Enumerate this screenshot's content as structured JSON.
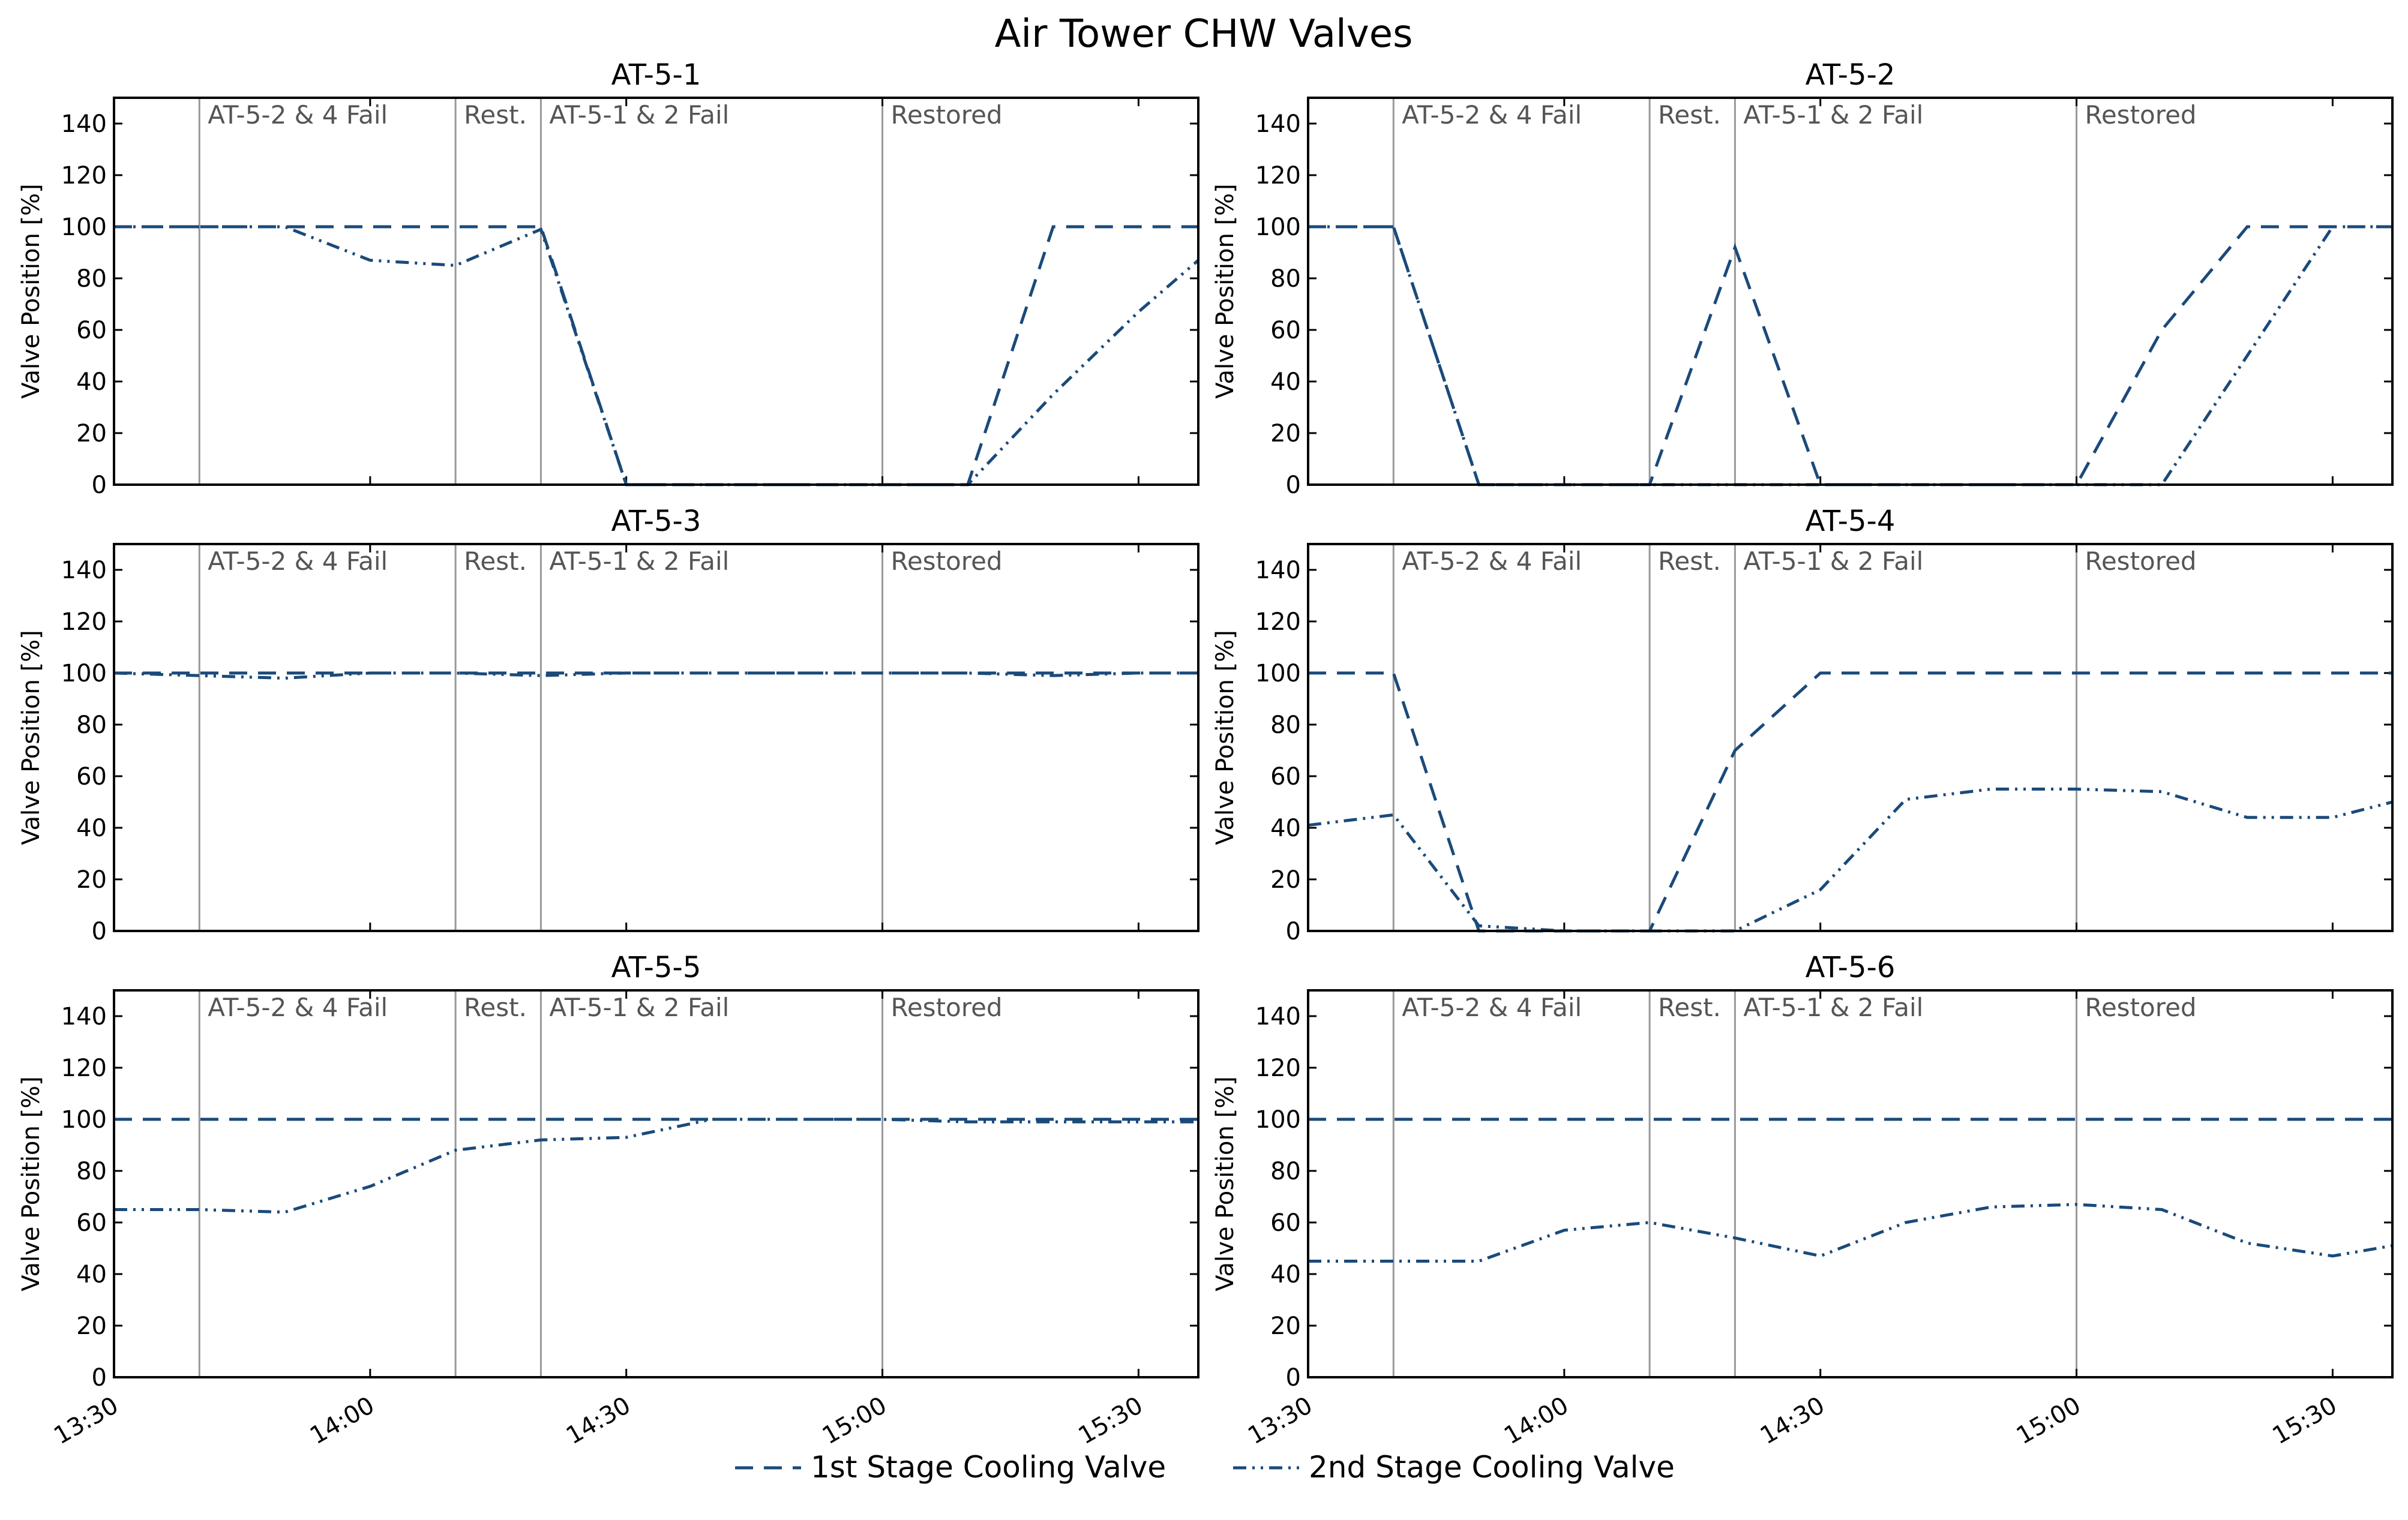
{
  "figure": {
    "title": "Air Tower CHW Valves"
  },
  "legend": {
    "placement": "bottom-center",
    "items": [
      {
        "name": "1st Stage Cooling Valve",
        "style": "dashed"
      },
      {
        "name": "2nd Stage Cooling Valve",
        "style": "dash-dot-dot"
      }
    ]
  },
  "colors": {
    "series": "#1a4a7a",
    "event_line": "#999999",
    "event_text": "#555555"
  },
  "chart_data": [
    {
      "type": "line",
      "title": "AT-5-1",
      "ylabel": "Valve Position [%]",
      "ylim": [
        0,
        150
      ],
      "xlim": [
        "13:30",
        "15:37"
      ],
      "grid": false,
      "y_ticks": [
        0,
        20,
        40,
        60,
        80,
        100,
        120,
        140
      ],
      "x_ticks": [
        "13:30",
        "14:00",
        "14:30",
        "15:00",
        "15:30"
      ],
      "x_tick_labels_shown": false,
      "events": [
        {
          "time": "13:40",
          "label": "AT-5-2 & 4 Fail"
        },
        {
          "time": "14:10",
          "label": "Rest."
        },
        {
          "time": "14:20",
          "label": "AT-5-1 & 2 Fail"
        },
        {
          "time": "15:00",
          "label": "Restored"
        }
      ],
      "x": [
        "13:30",
        "13:40",
        "13:50",
        "14:00",
        "14:10",
        "14:20",
        "14:30",
        "14:40",
        "14:50",
        "15:00",
        "15:10",
        "15:20",
        "15:30",
        "15:37"
      ],
      "series": [
        {
          "name": "1st Stage Cooling Valve",
          "values": [
            100,
            100,
            100,
            100,
            100,
            100,
            0,
            0,
            0,
            0,
            0,
            100,
            100,
            100
          ]
        },
        {
          "name": "2nd Stage Cooling Valve",
          "values": [
            100,
            100,
            100,
            87,
            85,
            99,
            0,
            0,
            0,
            0,
            0,
            35,
            67,
            87
          ]
        }
      ]
    },
    {
      "type": "line",
      "title": "AT-5-2",
      "ylabel": "Valve Position [%]",
      "ylim": [
        0,
        150
      ],
      "xlim": [
        "13:30",
        "15:37"
      ],
      "grid": false,
      "y_ticks": [
        0,
        20,
        40,
        60,
        80,
        100,
        120,
        140
      ],
      "x_ticks": [
        "13:30",
        "14:00",
        "14:30",
        "15:00",
        "15:30"
      ],
      "x_tick_labels_shown": false,
      "events": [
        {
          "time": "13:40",
          "label": "AT-5-2 & 4 Fail"
        },
        {
          "time": "14:10",
          "label": "Rest."
        },
        {
          "time": "14:20",
          "label": "AT-5-1 & 2 Fail"
        },
        {
          "time": "15:00",
          "label": "Restored"
        }
      ],
      "x": [
        "13:30",
        "13:40",
        "13:50",
        "14:00",
        "14:10",
        "14:20",
        "14:30",
        "14:40",
        "14:50",
        "15:00",
        "15:10",
        "15:20",
        "15:30",
        "15:37"
      ],
      "series": [
        {
          "name": "1st Stage Cooling Valve",
          "values": [
            100,
            100,
            0,
            0,
            0,
            92,
            0,
            0,
            0,
            0,
            60,
            100,
            100,
            100
          ]
        },
        {
          "name": "2nd Stage Cooling Valve",
          "values": [
            100,
            100,
            0,
            0,
            0,
            0,
            0,
            0,
            0,
            0,
            0,
            50,
            100,
            100
          ]
        }
      ]
    },
    {
      "type": "line",
      "title": "AT-5-3",
      "ylabel": "Valve Position [%]",
      "ylim": [
        0,
        150
      ],
      "xlim": [
        "13:30",
        "15:37"
      ],
      "grid": false,
      "y_ticks": [
        0,
        20,
        40,
        60,
        80,
        100,
        120,
        140
      ],
      "x_ticks": [
        "13:30",
        "14:00",
        "14:30",
        "15:00",
        "15:30"
      ],
      "x_tick_labels_shown": false,
      "events": [
        {
          "time": "13:40",
          "label": "AT-5-2 & 4 Fail"
        },
        {
          "time": "14:10",
          "label": "Rest."
        },
        {
          "time": "14:20",
          "label": "AT-5-1 & 2 Fail"
        },
        {
          "time": "15:00",
          "label": "Restored"
        }
      ],
      "x": [
        "13:30",
        "13:40",
        "13:50",
        "14:00",
        "14:10",
        "14:20",
        "14:30",
        "14:40",
        "14:50",
        "15:00",
        "15:10",
        "15:20",
        "15:30",
        "15:37"
      ],
      "series": [
        {
          "name": "1st Stage Cooling Valve",
          "values": [
            100,
            100,
            100,
            100,
            100,
            100,
            100,
            100,
            100,
            100,
            100,
            100,
            100,
            100
          ]
        },
        {
          "name": "2nd Stage Cooling Valve",
          "values": [
            100,
            99,
            98,
            100,
            100,
            99,
            100,
            100,
            100,
            100,
            100,
            99,
            100,
            100
          ]
        }
      ]
    },
    {
      "type": "line",
      "title": "AT-5-4",
      "ylabel": "Valve Position [%]",
      "ylim": [
        0,
        150
      ],
      "xlim": [
        "13:30",
        "15:37"
      ],
      "grid": false,
      "y_ticks": [
        0,
        20,
        40,
        60,
        80,
        100,
        120,
        140
      ],
      "x_ticks": [
        "13:30",
        "14:00",
        "14:30",
        "15:00",
        "15:30"
      ],
      "x_tick_labels_shown": false,
      "events": [
        {
          "time": "13:40",
          "label": "AT-5-2 & 4 Fail"
        },
        {
          "time": "14:10",
          "label": "Rest."
        },
        {
          "time": "14:20",
          "label": "AT-5-1 & 2 Fail"
        },
        {
          "time": "15:00",
          "label": "Restored"
        }
      ],
      "x": [
        "13:30",
        "13:40",
        "13:50",
        "14:00",
        "14:10",
        "14:20",
        "14:30",
        "14:40",
        "14:50",
        "15:00",
        "15:10",
        "15:20",
        "15:30",
        "15:37"
      ],
      "series": [
        {
          "name": "1st Stage Cooling Valve",
          "values": [
            100,
            100,
            0,
            0,
            0,
            70,
            100,
            100,
            100,
            100,
            100,
            100,
            100,
            100
          ]
        },
        {
          "name": "2nd Stage Cooling Valve",
          "values": [
            41,
            45,
            2,
            0,
            0,
            0,
            16,
            51,
            55,
            55,
            54,
            44,
            44,
            50
          ]
        }
      ]
    },
    {
      "type": "line",
      "title": "AT-5-5",
      "ylabel": "Valve Position [%]",
      "ylim": [
        0,
        150
      ],
      "xlim": [
        "13:30",
        "15:37"
      ],
      "grid": false,
      "y_ticks": [
        0,
        20,
        40,
        60,
        80,
        100,
        120,
        140
      ],
      "x_ticks": [
        "13:30",
        "14:00",
        "14:30",
        "15:00",
        "15:30"
      ],
      "x_tick_labels_shown": true,
      "events": [
        {
          "time": "13:40",
          "label": "AT-5-2 & 4 Fail"
        },
        {
          "time": "14:10",
          "label": "Rest."
        },
        {
          "time": "14:20",
          "label": "AT-5-1 & 2 Fail"
        },
        {
          "time": "15:00",
          "label": "Restored"
        }
      ],
      "x": [
        "13:30",
        "13:40",
        "13:50",
        "14:00",
        "14:10",
        "14:20",
        "14:30",
        "14:40",
        "14:50",
        "15:00",
        "15:10",
        "15:20",
        "15:30",
        "15:37"
      ],
      "series": [
        {
          "name": "1st Stage Cooling Valve",
          "values": [
            100,
            100,
            100,
            100,
            100,
            100,
            100,
            100,
            100,
            100,
            100,
            100,
            100,
            100
          ]
        },
        {
          "name": "2nd Stage Cooling Valve",
          "values": [
            65,
            65,
            64,
            74,
            88,
            92,
            93,
            100,
            100,
            100,
            99,
            99,
            99,
            99
          ]
        }
      ]
    },
    {
      "type": "line",
      "title": "AT-5-6",
      "ylabel": "Valve Position [%]",
      "ylim": [
        0,
        150
      ],
      "xlim": [
        "13:30",
        "15:37"
      ],
      "grid": false,
      "y_ticks": [
        0,
        20,
        40,
        60,
        80,
        100,
        120,
        140
      ],
      "x_ticks": [
        "13:30",
        "14:00",
        "14:30",
        "15:00",
        "15:30"
      ],
      "x_tick_labels_shown": true,
      "events": [
        {
          "time": "13:40",
          "label": "AT-5-2 & 4 Fail"
        },
        {
          "time": "14:10",
          "label": "Rest."
        },
        {
          "time": "14:20",
          "label": "AT-5-1 & 2 Fail"
        },
        {
          "time": "15:00",
          "label": "Restored"
        }
      ],
      "x": [
        "13:30",
        "13:40",
        "13:50",
        "14:00",
        "14:10",
        "14:20",
        "14:30",
        "14:40",
        "14:50",
        "15:00",
        "15:10",
        "15:20",
        "15:30",
        "15:37"
      ],
      "series": [
        {
          "name": "1st Stage Cooling Valve",
          "values": [
            100,
            100,
            100,
            100,
            100,
            100,
            100,
            100,
            100,
            100,
            100,
            100,
            100,
            100
          ]
        },
        {
          "name": "2nd Stage Cooling Valve",
          "values": [
            45,
            45,
            45,
            57,
            60,
            54,
            47,
            60,
            66,
            67,
            65,
            52,
            47,
            51
          ]
        }
      ]
    }
  ]
}
